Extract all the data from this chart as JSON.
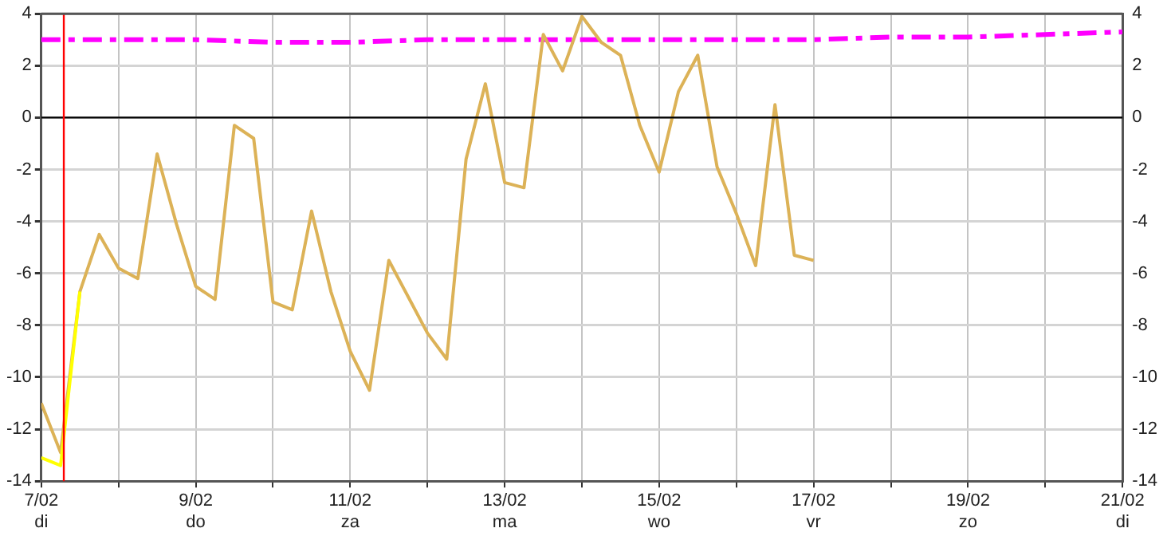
{
  "chart_data": {
    "type": "line",
    "xlim": [
      "--02-07",
      "--02-21"
    ],
    "xticks": [
      {
        "value": "--02-07",
        "label": "7/02\ndi"
      },
      {
        "value": "--02-08",
        "label": null
      },
      {
        "value": "--02-09",
        "label": "9/02\ndo"
      },
      {
        "value": "--02-10",
        "label": null
      },
      {
        "value": "--02-11",
        "label": "11/02\nza"
      },
      {
        "value": "--02-12",
        "label": null
      },
      {
        "value": "--02-13",
        "label": "13/02\nma"
      },
      {
        "value": "--02-14",
        "label": null
      },
      {
        "value": "--02-15",
        "label": "15/02\nwo"
      },
      {
        "value": "--02-16",
        "label": null
      },
      {
        "value": "--02-17",
        "label": "17/02\nvr"
      },
      {
        "value": "--02-18",
        "label": null
      },
      {
        "value": "--02-19",
        "label": "19/02\nzo"
      },
      {
        "value": "--02-20",
        "label": null
      },
      {
        "value": "--02-21",
        "label": "21/02\ndi"
      }
    ],
    "ylim": [
      -14,
      4
    ],
    "yticks": [
      -14,
      -12,
      -10,
      -8,
      -6,
      -4,
      -2,
      0,
      2,
      4
    ],
    "y2lim": [
      -14,
      4
    ],
    "y2ticks": [
      -14,
      -12,
      -10,
      -8,
      -6,
      -4,
      -2,
      0,
      2,
      4
    ],
    "grid": true,
    "marker": "none",
    "series": [
      {
        "color": "#ff00ff",
        "line_style": "dashed",
        "x": [
          "--02-07",
          "--02-08",
          "--02-09",
          "--02-10",
          "--02-11",
          "--02-12",
          "--02-13",
          "--02-14",
          "--02-15",
          "--02-16",
          "--02-17",
          "--02-18",
          "--02-19",
          "--02-20",
          "--02-21"
        ],
        "values": [
          3.0,
          3.0,
          3.0,
          2.9,
          2.9,
          3.0,
          3.0,
          3.0,
          3.0,
          3.0,
          3.0,
          3.1,
          3.1,
          3.2,
          3.3
        ]
      },
      {
        "color": "#dcb257",
        "line_style": "solid",
        "x": [
          "--02-07T00:00",
          "--02-07T06:00",
          "--02-07T12:00",
          "--02-07T18:00",
          "--02-08T00:00",
          "--02-08T06:00",
          "--02-08T12:00",
          "--02-08T18:00",
          "--02-09T00:00",
          "--02-09T06:00",
          "--02-09T12:00",
          "--02-09T18:00",
          "--02-10T00:00",
          "--02-10T06:00",
          "--02-10T12:00",
          "--02-10T18:00",
          "--02-11T00:00",
          "--02-11T06:00",
          "--02-11T12:00",
          "--02-11T18:00",
          "--02-12T00:00",
          "--02-12T06:00",
          "--02-12T12:00",
          "--02-12T18:00",
          "--02-13T00:00",
          "--02-13T06:00",
          "--02-13T12:00",
          "--02-13T18:00",
          "--02-14T00:00",
          "--02-14T06:00",
          "--02-14T12:00",
          "--02-14T18:00",
          "--02-15T00:00",
          "--02-15T06:00",
          "--02-15T12:00",
          "--02-15T18:00",
          "--02-16T00:00",
          "--02-16T06:00",
          "--02-16T12:00",
          "--02-16T18:00",
          "--02-17T00:00"
        ],
        "values": [
          -11.0,
          -12.9,
          -6.7,
          -4.5,
          -5.8,
          -6.2,
          -1.4,
          -4.1,
          -6.5,
          -7.0,
          -0.3,
          -0.8,
          -7.1,
          -7.4,
          -3.6,
          -6.7,
          -9.0,
          -10.5,
          -5.5,
          -6.9,
          -8.3,
          -9.3,
          -1.6,
          1.3,
          -2.5,
          -2.7,
          3.2,
          1.8,
          3.9,
          2.9,
          2.4,
          -0.3,
          -2.1,
          1.0,
          2.4,
          -1.9,
          -3.7,
          -5.7,
          0.5,
          -5.3,
          -5.5
        ]
      },
      {
        "color": "#ffff00",
        "line_style": "solid",
        "x": [
          "--02-07T00:00",
          "--02-07T06:00",
          "--02-07T12:00"
        ],
        "values": [
          -13.1,
          -13.4,
          -6.7
        ]
      }
    ],
    "ref_lines": [
      {
        "axis": "y",
        "value": 0,
        "color": "#000000"
      },
      {
        "axis": "x",
        "value": "--02-07T07:00",
        "color": "#ff0000"
      }
    ]
  }
}
